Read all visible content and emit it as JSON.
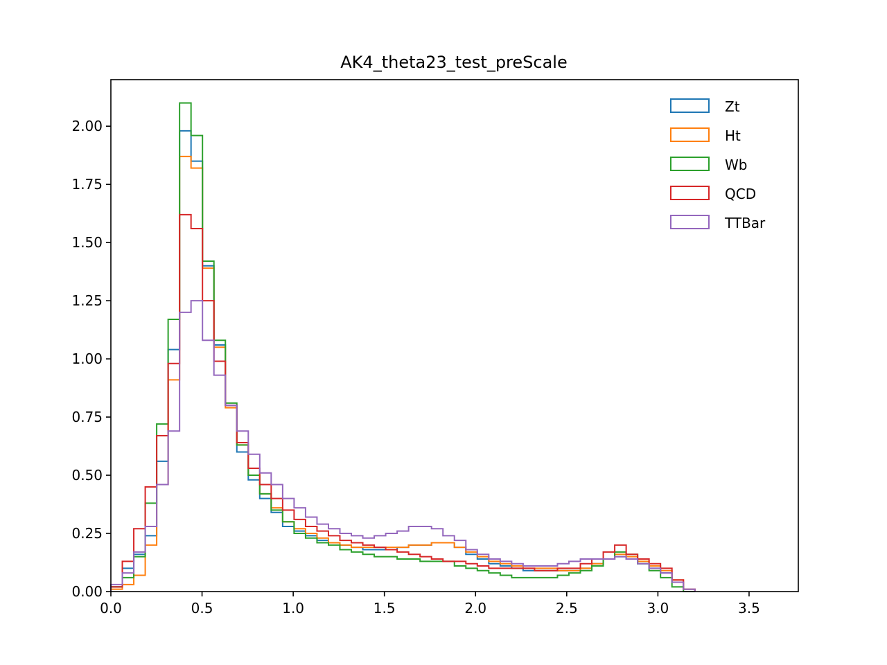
{
  "chart_data": {
    "type": "histogram-step",
    "title": "AK4_theta23_test_preScale",
    "xlabel": "",
    "ylabel": "",
    "xlim": [
      0.0,
      3.77
    ],
    "ylim": [
      0.0,
      2.2
    ],
    "grid": false,
    "legend_position": "top-right",
    "xticks": [
      {
        "value": 0.0,
        "label": "0.0"
      },
      {
        "value": 0.5,
        "label": "0.5"
      },
      {
        "value": 1.0,
        "label": "1.0"
      },
      {
        "value": 1.5,
        "label": "1.5"
      },
      {
        "value": 2.0,
        "label": "2.0"
      },
      {
        "value": 2.5,
        "label": "2.5"
      },
      {
        "value": 3.0,
        "label": "3.0"
      },
      {
        "value": 3.5,
        "label": "3.5"
      }
    ],
    "yticks": [
      {
        "value": 0.0,
        "label": "0.00"
      },
      {
        "value": 0.25,
        "label": "0.25"
      },
      {
        "value": 0.5,
        "label": "0.50"
      },
      {
        "value": 0.75,
        "label": "0.75"
      },
      {
        "value": 1.0,
        "label": "1.00"
      },
      {
        "value": 1.25,
        "label": "1.25"
      },
      {
        "value": 1.5,
        "label": "1.50"
      },
      {
        "value": 1.75,
        "label": "1.75"
      },
      {
        "value": 2.0,
        "label": "2.00"
      }
    ],
    "bin_start": 0.0,
    "bin_width": 0.0628,
    "series": [
      {
        "name": "Zt",
        "color": "#1f77b4",
        "values": [
          0.02,
          0.1,
          0.16,
          0.24,
          0.56,
          1.04,
          1.98,
          1.85,
          1.4,
          1.06,
          0.8,
          0.6,
          0.48,
          0.4,
          0.34,
          0.28,
          0.26,
          0.24,
          0.22,
          0.21,
          0.2,
          0.19,
          0.18,
          0.18,
          0.18,
          0.19,
          0.2,
          0.2,
          0.21,
          0.21,
          0.19,
          0.16,
          0.14,
          0.12,
          0.11,
          0.1,
          0.09,
          0.09,
          0.09,
          0.09,
          0.09,
          0.1,
          0.12,
          0.14,
          0.15,
          0.14,
          0.12,
          0.1,
          0.08,
          0.04,
          0.01
        ]
      },
      {
        "name": "Ht",
        "color": "#ff7f0e",
        "values": [
          0.01,
          0.03,
          0.07,
          0.2,
          0.46,
          0.91,
          1.87,
          1.82,
          1.39,
          1.05,
          0.79,
          0.63,
          0.5,
          0.42,
          0.36,
          0.3,
          0.27,
          0.25,
          0.23,
          0.21,
          0.2,
          0.19,
          0.19,
          0.19,
          0.19,
          0.19,
          0.2,
          0.2,
          0.21,
          0.21,
          0.19,
          0.17,
          0.15,
          0.13,
          0.12,
          0.11,
          0.1,
          0.1,
          0.1,
          0.09,
          0.09,
          0.1,
          0.12,
          0.14,
          0.16,
          0.15,
          0.13,
          0.11,
          0.09,
          0.05,
          0.01
        ]
      },
      {
        "name": "Wb",
        "color": "#2ca02c",
        "values": [
          0.02,
          0.06,
          0.15,
          0.38,
          0.72,
          1.17,
          2.1,
          1.96,
          1.42,
          1.08,
          0.81,
          0.63,
          0.5,
          0.42,
          0.35,
          0.3,
          0.25,
          0.23,
          0.21,
          0.2,
          0.18,
          0.17,
          0.16,
          0.15,
          0.15,
          0.14,
          0.14,
          0.13,
          0.13,
          0.13,
          0.11,
          0.1,
          0.09,
          0.08,
          0.07,
          0.06,
          0.06,
          0.06,
          0.06,
          0.07,
          0.08,
          0.09,
          0.11,
          0.14,
          0.17,
          0.16,
          0.12,
          0.09,
          0.06,
          0.02,
          0.0
        ]
      },
      {
        "name": "QCD",
        "color": "#d62728",
        "values": [
          0.02,
          0.13,
          0.27,
          0.45,
          0.67,
          0.98,
          1.62,
          1.56,
          1.25,
          0.99,
          0.8,
          0.64,
          0.53,
          0.46,
          0.4,
          0.35,
          0.31,
          0.28,
          0.26,
          0.24,
          0.22,
          0.21,
          0.2,
          0.19,
          0.18,
          0.17,
          0.16,
          0.15,
          0.14,
          0.13,
          0.13,
          0.12,
          0.11,
          0.1,
          0.1,
          0.1,
          0.1,
          0.09,
          0.09,
          0.1,
          0.1,
          0.12,
          0.14,
          0.17,
          0.2,
          0.16,
          0.14,
          0.12,
          0.1,
          0.05,
          0.01
        ]
      },
      {
        "name": "TTBar",
        "color": "#9467bd",
        "values": [
          0.03,
          0.08,
          0.17,
          0.28,
          0.46,
          0.69,
          1.2,
          1.25,
          1.08,
          0.93,
          0.8,
          0.69,
          0.59,
          0.51,
          0.46,
          0.4,
          0.36,
          0.32,
          0.29,
          0.27,
          0.25,
          0.24,
          0.23,
          0.24,
          0.25,
          0.26,
          0.28,
          0.28,
          0.27,
          0.24,
          0.22,
          0.18,
          0.16,
          0.14,
          0.13,
          0.12,
          0.11,
          0.11,
          0.11,
          0.12,
          0.13,
          0.14,
          0.14,
          0.14,
          0.15,
          0.14,
          0.12,
          0.1,
          0.08,
          0.04,
          0.01
        ]
      }
    ]
  }
}
